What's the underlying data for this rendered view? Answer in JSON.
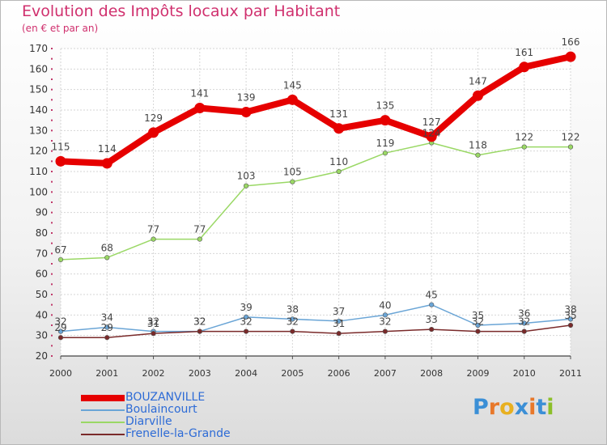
{
  "title": "Evolution des Impôts locaux par Habitant",
  "subtitle": "(en € et par an)",
  "brand": {
    "text": "Proxiti",
    "letters": [
      "P",
      "r",
      "o",
      "x",
      "i",
      "t",
      "i"
    ],
    "colors": [
      "#3b8fd6",
      "#e8782a",
      "#e8b020",
      "#3b8fd6",
      "#e8782a",
      "#3b8fd6",
      "#8cbf2a"
    ]
  },
  "chart_data": {
    "type": "line",
    "title": "Evolution des Impôts locaux par Habitant",
    "subtitle": "(en € et par an)",
    "x": [
      "2000",
      "2001",
      "2002",
      "2003",
      "2004",
      "2005",
      "2006",
      "2007",
      "2008",
      "2009",
      "2010",
      "2011"
    ],
    "ylim": [
      20,
      170
    ],
    "yticks": [
      20,
      30,
      40,
      50,
      60,
      70,
      80,
      90,
      100,
      110,
      120,
      130,
      140,
      150,
      160,
      170
    ],
    "grid": true,
    "legend": "bottom-left",
    "series": [
      {
        "name": "BOUZANVILLE",
        "color": "#e60000",
        "width": 8,
        "marker": 6.5,
        "labels": true,
        "values": [
          115,
          114,
          129,
          141,
          139,
          145,
          131,
          135,
          127,
          147,
          161,
          166
        ]
      },
      {
        "name": "Boulaincourt",
        "color": "#6aa5d6",
        "width": 1.5,
        "marker": 2.8,
        "labels": true,
        "values": [
          32,
          34,
          32,
          32,
          39,
          38,
          37,
          40,
          45,
          35,
          36,
          38
        ]
      },
      {
        "name": "Diarville",
        "color": "#9ad865",
        "width": 1.5,
        "marker": 2.8,
        "labels": true,
        "values": [
          67,
          68,
          77,
          77,
          103,
          105,
          110,
          119,
          124,
          118,
          122,
          122
        ]
      },
      {
        "name": "Frenelle-la-Grande",
        "color": "#7a2a2a",
        "width": 1.5,
        "marker": 2.8,
        "labels": true,
        "values": [
          29,
          29,
          31,
          32,
          32,
          32,
          31,
          32,
          33,
          32,
          32,
          35
        ]
      }
    ]
  }
}
